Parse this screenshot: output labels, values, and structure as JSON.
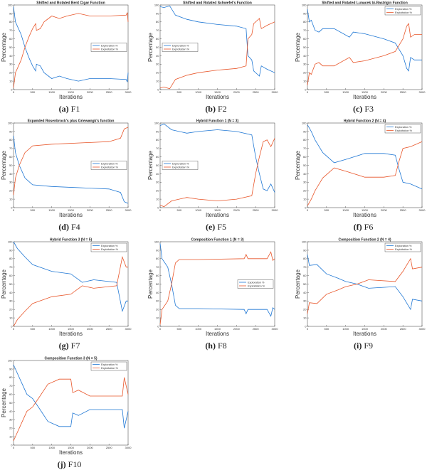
{
  "colors": {
    "exploration": "#1f77d4",
    "exploitation": "#e8562a",
    "axis": "#333333"
  },
  "chart_data": [
    {
      "id": "a",
      "type": "line",
      "caption_letter": "(a)",
      "caption_name": "F1",
      "title": "Shifted and Rotated Bent Cigar Function",
      "xlabel": "Iterations",
      "ylabel": "Percentage",
      "xlim": [
        0,
        3000
      ],
      "ylim": [
        0,
        100
      ],
      "xticks": [
        0,
        500,
        1000,
        1500,
        2000,
        2500,
        3000
      ],
      "yticks": [
        0,
        10,
        20,
        30,
        40,
        50,
        60,
        70,
        80,
        90,
        100
      ],
      "legend": "center-right",
      "series": [
        {
          "name": "Exploration %",
          "x": [
            0,
            50,
            100,
            200,
            300,
            400,
            500,
            580,
            600,
            700,
            800,
            1000,
            1200,
            1400,
            1700,
            2000,
            2500,
            2950,
            2980,
            3000
          ],
          "y": [
            98,
            80,
            75,
            65,
            50,
            38,
            28,
            22,
            30,
            28,
            20,
            13,
            16,
            13,
            10,
            13,
            13,
            12,
            9,
            20
          ]
        },
        {
          "name": "Exploitation %",
          "x": [
            0,
            50,
            100,
            200,
            300,
            400,
            500,
            580,
            600,
            700,
            800,
            1000,
            1200,
            1400,
            1700,
            2000,
            2500,
            2950,
            2980,
            3000
          ],
          "y": [
            2,
            20,
            25,
            35,
            50,
            62,
            72,
            78,
            70,
            72,
            80,
            87,
            84,
            87,
            90,
            87,
            87,
            88,
            91,
            80
          ]
        }
      ]
    },
    {
      "id": "b",
      "type": "line",
      "caption_letter": "(b)",
      "caption_name": "F2",
      "title": "Shifted and Rotated Schwefel's Function",
      "xlabel": "Iterations",
      "ylabel": "Percentage",
      "xlim": [
        0,
        3000
      ],
      "ylim": [
        0,
        100
      ],
      "xticks": [
        0,
        500,
        1000,
        1500,
        2000,
        2500,
        3000
      ],
      "yticks": [
        0,
        10,
        20,
        30,
        40,
        50,
        60,
        70,
        80,
        90,
        100
      ],
      "legend": "center-left",
      "series": [
        {
          "name": "Exploration %",
          "x": [
            0,
            100,
            250,
            400,
            700,
            1000,
            1500,
            2000,
            2250,
            2300,
            2400,
            2450,
            2600,
            2650,
            2800,
            3000
          ],
          "y": [
            98,
            97,
            99,
            88,
            83,
            80,
            77,
            75,
            72,
            40,
            35,
            22,
            16,
            28,
            24,
            20
          ]
        },
        {
          "name": "Exploitation %",
          "x": [
            0,
            100,
            250,
            400,
            700,
            1000,
            1500,
            2000,
            2250,
            2300,
            2400,
            2450,
            2600,
            2650,
            2800,
            3000
          ],
          "y": [
            2,
            3,
            1,
            12,
            17,
            20,
            23,
            25,
            28,
            60,
            65,
            78,
            84,
            72,
            76,
            80
          ]
        }
      ]
    },
    {
      "id": "c",
      "type": "line",
      "caption_letter": "(c)",
      "caption_name": "F3",
      "title": "Shifted and Rotated Lunacek bi-Rastrigin Function",
      "xlabel": "Iterations",
      "ylabel": "Percentage",
      "xlim": [
        0,
        3000
      ],
      "ylim": [
        0,
        100
      ],
      "xticks": [
        0,
        500,
        1000,
        1500,
        2000,
        2500,
        3000
      ],
      "yticks": [
        0,
        10,
        20,
        30,
        40,
        50,
        60,
        70,
        80,
        90,
        100
      ],
      "legend": "top-right",
      "series": [
        {
          "name": "Exploration %",
          "x": [
            0,
            50,
            100,
            200,
            300,
            400,
            700,
            1100,
            1200,
            1500,
            2000,
            2300,
            2500,
            2600,
            2650,
            2700,
            2800,
            3000
          ],
          "y": [
            95,
            80,
            82,
            70,
            68,
            72,
            72,
            62,
            68,
            66,
            60,
            55,
            40,
            25,
            22,
            38,
            35,
            35
          ]
        },
        {
          "name": "Exploitation %",
          "x": [
            0,
            50,
            100,
            200,
            300,
            400,
            700,
            1100,
            1200,
            1500,
            2000,
            2300,
            2500,
            2600,
            2650,
            2700,
            2800,
            3000
          ],
          "y": [
            5,
            20,
            18,
            30,
            32,
            28,
            28,
            38,
            32,
            34,
            40,
            45,
            60,
            75,
            78,
            62,
            65,
            65
          ]
        }
      ]
    },
    {
      "id": "d",
      "type": "line",
      "caption_letter": "(d)",
      "caption_name": "F4",
      "title": "Expanded Rosenbrock's plus Griewangk's function",
      "xlabel": "Iterations",
      "ylabel": "Percentage",
      "xlim": [
        0,
        3000
      ],
      "ylim": [
        0,
        100
      ],
      "xticks": [
        0,
        500,
        1000,
        1500,
        2000,
        2500,
        3000
      ],
      "yticks": [
        0,
        10,
        20,
        30,
        40,
        50,
        60,
        70,
        80,
        90,
        100
      ],
      "legend": "center-right",
      "series": [
        {
          "name": "Exploration %",
          "x": [
            0,
            50,
            150,
            300,
            500,
            1000,
            2000,
            2500,
            2800,
            2900,
            3000
          ],
          "y": [
            85,
            65,
            50,
            35,
            27,
            25,
            23,
            22,
            18,
            7,
            5
          ]
        },
        {
          "name": "Exploitation %",
          "x": [
            0,
            50,
            150,
            300,
            500,
            1000,
            2000,
            2500,
            2800,
            2900,
            3000
          ],
          "y": [
            15,
            35,
            50,
            65,
            73,
            75,
            77,
            78,
            82,
            93,
            95
          ]
        }
      ]
    },
    {
      "id": "e",
      "type": "line",
      "caption_letter": "(e)",
      "caption_name": "F5",
      "title": "Hybrid Function 1 (N = 3)",
      "xlabel": "Iterations",
      "ylabel": "Percentage",
      "xlim": [
        0,
        3000
      ],
      "ylim": [
        0,
        100
      ],
      "xticks": [
        0,
        500,
        1000,
        1500,
        2000,
        2500,
        3000
      ],
      "yticks": [
        0,
        10,
        20,
        30,
        40,
        50,
        60,
        70,
        80,
        90,
        100
      ],
      "legend": "center-left",
      "series": [
        {
          "name": "Exploration %",
          "x": [
            0,
            100,
            300,
            700,
            1000,
            1500,
            2000,
            2400,
            2500,
            2600,
            2700,
            2800,
            2900,
            3000
          ],
          "y": [
            97,
            99,
            92,
            88,
            90,
            92,
            90,
            86,
            60,
            40,
            22,
            20,
            28,
            18
          ]
        },
        {
          "name": "Exploitation %",
          "x": [
            0,
            100,
            300,
            700,
            1000,
            1500,
            2000,
            2400,
            2500,
            2600,
            2700,
            2800,
            2900,
            3000
          ],
          "y": [
            3,
            1,
            8,
            12,
            10,
            8,
            10,
            14,
            40,
            60,
            78,
            80,
            72,
            82
          ]
        }
      ]
    },
    {
      "id": "f",
      "type": "line",
      "caption_letter": "(f)",
      "caption_name": "F6",
      "title": "Hybrid Function 2 (N = 4)",
      "xlabel": "Iterations",
      "ylabel": "Percentage",
      "xlim": [
        0,
        3000
      ],
      "ylim": [
        0,
        100
      ],
      "xticks": [
        0,
        500,
        1000,
        1500,
        2000,
        2500,
        3000
      ],
      "yticks": [
        0,
        10,
        20,
        30,
        40,
        50,
        60,
        70,
        80,
        90,
        100
      ],
      "legend": "top-right",
      "series": [
        {
          "name": "Exploration %",
          "x": [
            0,
            100,
            200,
            400,
            700,
            1000,
            1500,
            2000,
            2300,
            2400,
            2500,
            2700,
            3000
          ],
          "y": [
            98,
            90,
            80,
            65,
            53,
            57,
            64,
            64,
            62,
            45,
            30,
            28,
            22
          ]
        },
        {
          "name": "Exploitation %",
          "x": [
            0,
            100,
            200,
            400,
            700,
            1000,
            1500,
            2000,
            2300,
            2400,
            2500,
            2700,
            3000
          ],
          "y": [
            2,
            10,
            20,
            35,
            47,
            43,
            36,
            36,
            38,
            55,
            70,
            72,
            78
          ]
        }
      ]
    },
    {
      "id": "g",
      "type": "line",
      "caption_letter": "(g)",
      "caption_name": "F7",
      "title": "Hybrid Function 3 (N = 5)",
      "xlabel": "Iterations",
      "ylabel": "Percentage",
      "xlim": [
        0,
        3000
      ],
      "ylim": [
        0,
        100
      ],
      "xticks": [
        0,
        500,
        1000,
        1500,
        2000,
        2500,
        3000
      ],
      "yticks": [
        0,
        10,
        20,
        30,
        40,
        50,
        60,
        70,
        80,
        90,
        100
      ],
      "legend": "top-right",
      "series": [
        {
          "name": "Exploration %",
          "x": [
            0,
            100,
            300,
            500,
            1000,
            1500,
            1800,
            2100,
            2700,
            2850,
            2950,
            3000
          ],
          "y": [
            100,
            92,
            82,
            73,
            65,
            62,
            52,
            55,
            52,
            18,
            30,
            30
          ]
        },
        {
          "name": "Exploitation %",
          "x": [
            0,
            100,
            300,
            500,
            1000,
            1500,
            1800,
            2100,
            2700,
            2850,
            2950,
            3000
          ],
          "y": [
            0,
            8,
            18,
            27,
            35,
            38,
            48,
            45,
            48,
            82,
            70,
            70
          ]
        }
      ]
    },
    {
      "id": "h",
      "type": "line",
      "caption_letter": "(h)",
      "caption_name": "F8",
      "title": "Composition Function 1 (N = 3)",
      "xlabel": "Iterations",
      "ylabel": "Percentage",
      "xlim": [
        0,
        3000
      ],
      "ylim": [
        0,
        100
      ],
      "xticks": [
        0,
        500,
        1000,
        1500,
        2000,
        2500,
        3000
      ],
      "yticks": [
        0,
        10,
        20,
        30,
        40,
        50,
        60,
        70,
        80,
        90,
        100
      ],
      "legend": "center-right",
      "series": [
        {
          "name": "Exploration %",
          "x": [
            0,
            50,
            200,
            300,
            400,
            500,
            1000,
            2200,
            2250,
            2300,
            2800,
            2900,
            2950,
            3000
          ],
          "y": [
            98,
            80,
            70,
            50,
            25,
            21,
            21,
            20,
            15,
            20,
            20,
            12,
            22,
            20
          ]
        },
        {
          "name": "Exploitation %",
          "x": [
            0,
            50,
            200,
            300,
            400,
            500,
            1000,
            2200,
            2250,
            2300,
            2800,
            2900,
            2950,
            3000
          ],
          "y": [
            2,
            20,
            30,
            50,
            75,
            79,
            79,
            80,
            85,
            80,
            80,
            88,
            78,
            80
          ]
        }
      ]
    },
    {
      "id": "i",
      "type": "line",
      "caption_letter": "(i)",
      "caption_name": "F9",
      "title": "Composition Function 2 (N = 4)",
      "xlabel": "Iterations",
      "ylabel": "Percentage",
      "xlim": [
        0,
        3000
      ],
      "ylim": [
        0,
        100
      ],
      "xticks": [
        0,
        500,
        1000,
        1500,
        2000,
        2500,
        3000
      ],
      "yticks": [
        0,
        10,
        20,
        30,
        40,
        50,
        60,
        70,
        80,
        90,
        100
      ],
      "legend": "top-right",
      "series": [
        {
          "name": "Exploration %",
          "x": [
            0,
            50,
            250,
            500,
            800,
            1000,
            1300,
            1600,
            2300,
            2500,
            2700,
            2750,
            3000
          ],
          "y": [
            85,
            72,
            73,
            62,
            57,
            53,
            50,
            45,
            47,
            35,
            20,
            32,
            30
          ]
        },
        {
          "name": "Exploitation %",
          "x": [
            0,
            50,
            250,
            500,
            800,
            1000,
            1300,
            1600,
            2300,
            2500,
            2700,
            2750,
            3000
          ],
          "y": [
            15,
            28,
            27,
            38,
            43,
            47,
            50,
            55,
            53,
            65,
            80,
            68,
            70
          ]
        }
      ]
    },
    {
      "id": "j",
      "type": "line",
      "caption_letter": "(j)",
      "caption_name": "F10",
      "title": "Composition Function 3 (N = 5)",
      "xlabel": "Iterations",
      "ylabel": "Percentage",
      "xlim": [
        0,
        3000
      ],
      "ylim": [
        0,
        100
      ],
      "xticks": [
        0,
        500,
        1000,
        1500,
        2000,
        2500,
        3000
      ],
      "yticks": [
        0,
        10,
        20,
        30,
        40,
        50,
        60,
        70,
        80,
        90,
        100
      ],
      "legend": "top-right",
      "series": [
        {
          "name": "Exploration %",
          "x": [
            0,
            200,
            350,
            500,
            650,
            900,
            1200,
            1500,
            1550,
            1700,
            2000,
            2850,
            2900,
            3000
          ],
          "y": [
            95,
            75,
            60,
            55,
            45,
            28,
            22,
            22,
            38,
            35,
            42,
            42,
            20,
            40
          ]
        },
        {
          "name": "Exploitation %",
          "x": [
            0,
            200,
            350,
            500,
            650,
            900,
            1200,
            1500,
            1550,
            1700,
            2000,
            2850,
            2900,
            3000
          ],
          "y": [
            5,
            25,
            40,
            45,
            55,
            72,
            78,
            78,
            62,
            65,
            58,
            58,
            80,
            60
          ]
        }
      ]
    }
  ]
}
